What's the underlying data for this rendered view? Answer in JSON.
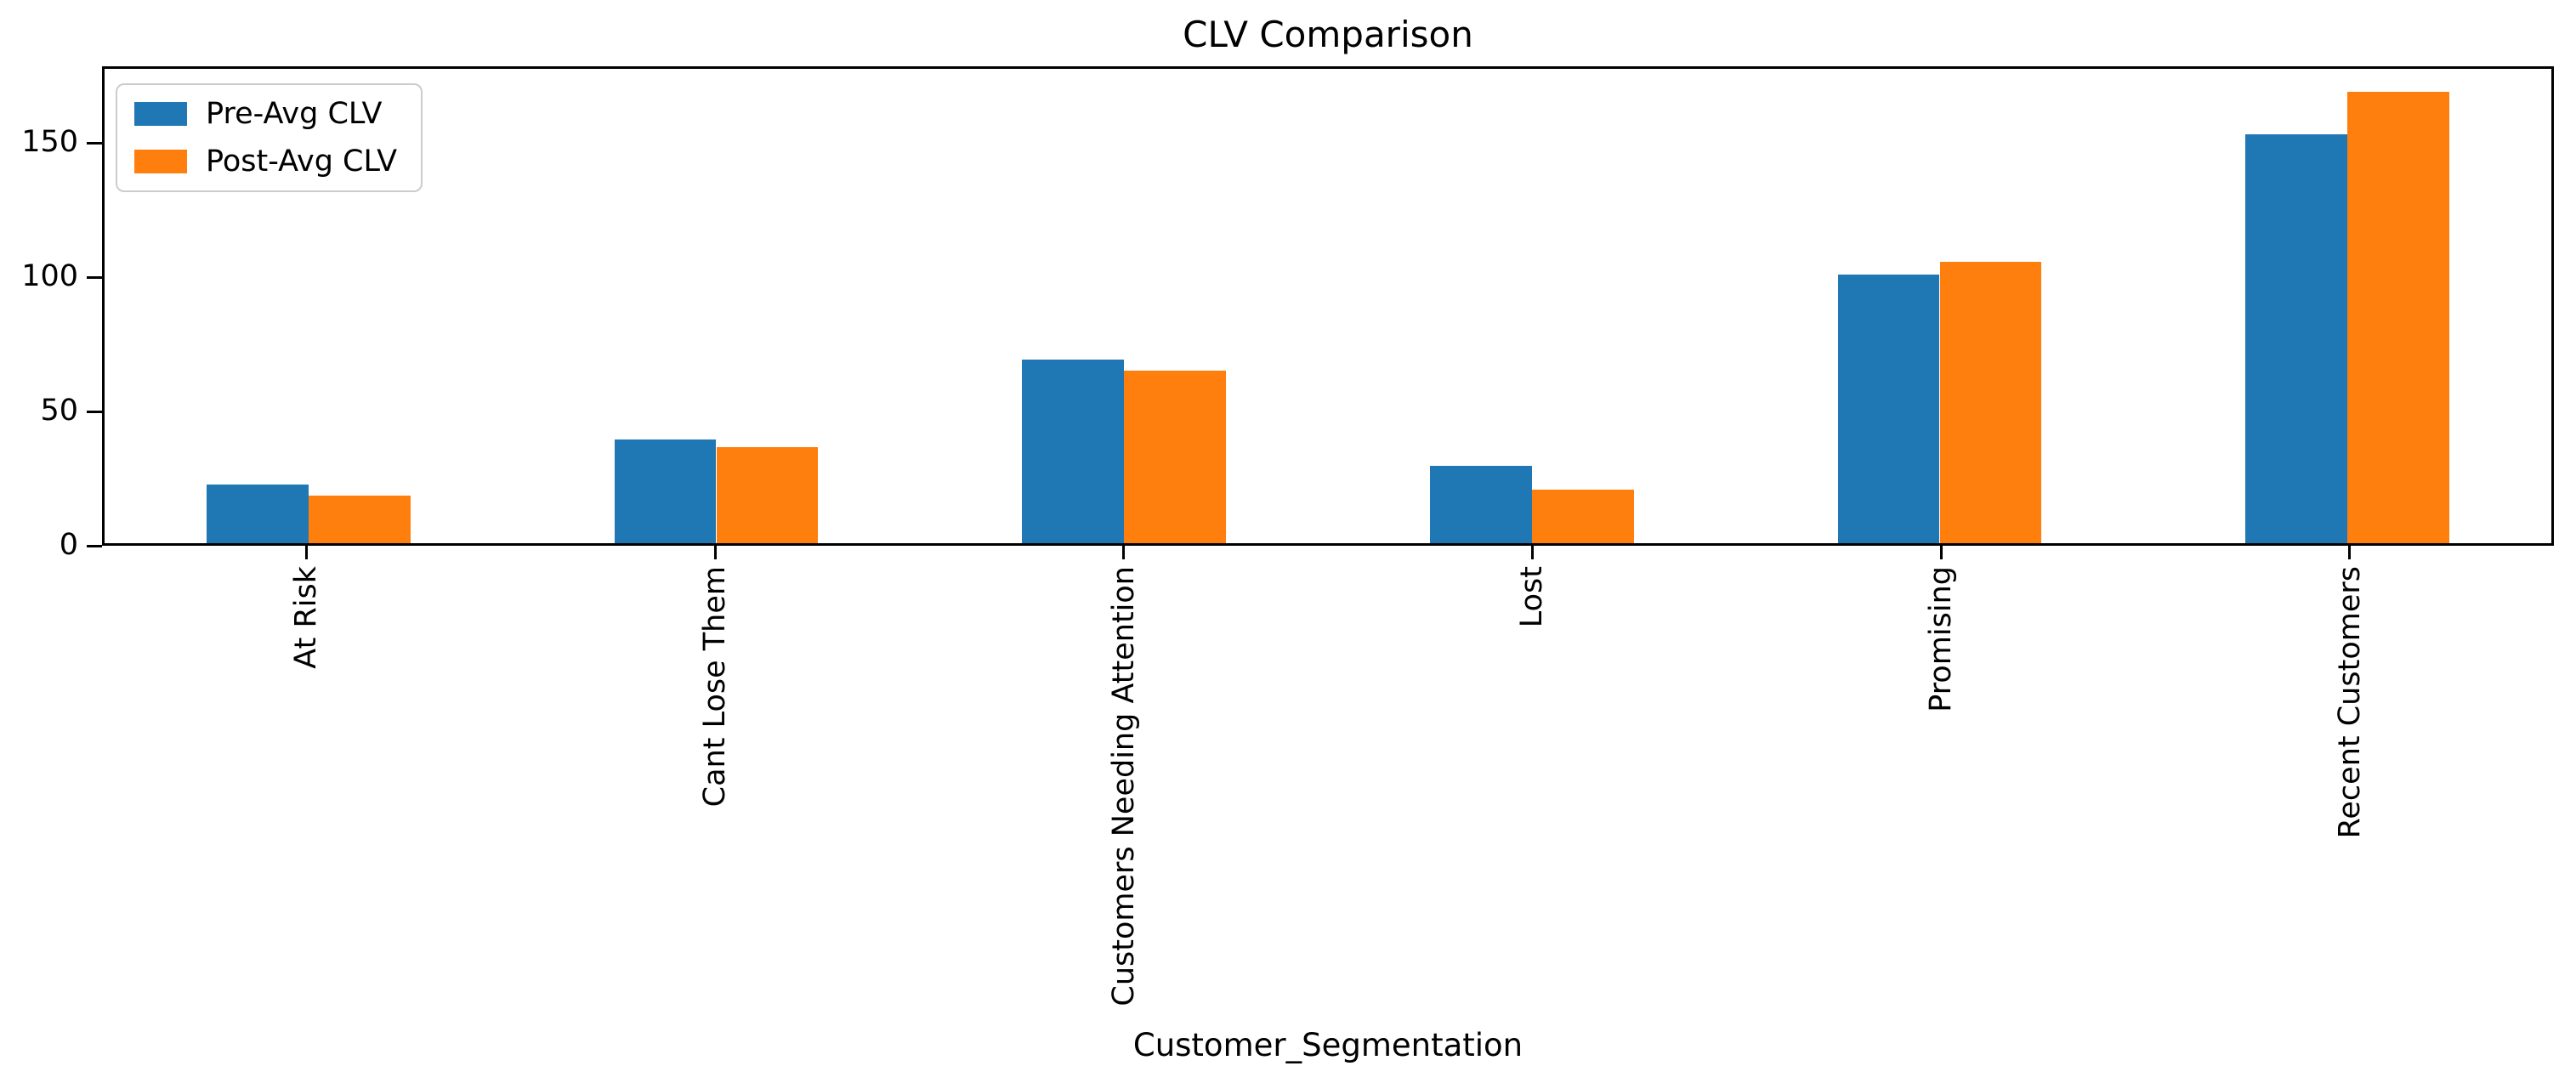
{
  "chart_data": {
    "type": "bar",
    "title": "CLV Comparison",
    "xlabel": "Customer_Segmentation",
    "ylabel": "",
    "categories": [
      "At Risk",
      "Cant Lose Them",
      "Customers Needing Attention",
      "Lost",
      "Promising",
      "Recent Customers"
    ],
    "series": [
      {
        "name": "Pre-Avg CLV",
        "color": "#1f77b4",
        "values": [
          22,
          39,
          69,
          29,
          101,
          154
        ]
      },
      {
        "name": "Post-Avg CLV",
        "color": "#ff7f0e",
        "values": [
          18,
          36,
          65,
          20,
          106,
          170
        ]
      }
    ],
    "y_ticks": [
      0,
      50,
      100,
      150
    ],
    "ylim": [
      0,
      178.5
    ],
    "grid": false,
    "legend_position": "upper left",
    "xtick_rotation_deg": 90,
    "bar_slot_fraction": 0.25,
    "colors": {
      "spine": "#000000",
      "text": "#000000",
      "legend_border": "#cccccc",
      "background": "#ffffff"
    }
  }
}
